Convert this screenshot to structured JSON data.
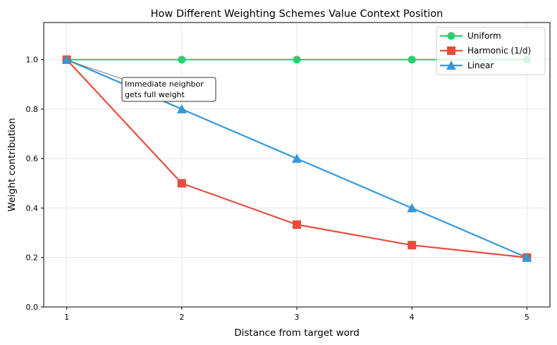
{
  "chart_data": {
    "type": "line",
    "title": "How Different Weighting Schemes Value Context Position",
    "xlabel": "Distance from target word",
    "ylabel": "Weight contribution",
    "x": [
      1,
      2,
      3,
      4,
      5
    ],
    "xlim": [
      0.8,
      5.2
    ],
    "ylim": [
      0,
      1.15
    ],
    "xticks": [
      "1",
      "2",
      "3",
      "4",
      "5"
    ],
    "yticks": [
      "0.0",
      "0.2",
      "0.4",
      "0.6",
      "0.8",
      "1.0"
    ],
    "grid": true,
    "legend_placement": "upper right",
    "series": [
      {
        "name": "Uniform",
        "values": [
          1.0,
          1.0,
          1.0,
          1.0,
          1.0
        ],
        "color": "#2ecc71",
        "marker": "circle"
      },
      {
        "name": "Harmonic (1/d)",
        "values": [
          1.0,
          0.5,
          0.333,
          0.25,
          0.2
        ],
        "color": "#e74c3c",
        "marker": "square"
      },
      {
        "name": "Linear",
        "values": [
          1.0,
          0.8,
          0.6,
          0.4,
          0.2
        ],
        "color": "#3498db",
        "marker": "triangle"
      }
    ],
    "annotation": {
      "text_lines": [
        "Immediate neighbor",
        "gets full weight"
      ],
      "x": 1,
      "y": 1.0
    }
  }
}
